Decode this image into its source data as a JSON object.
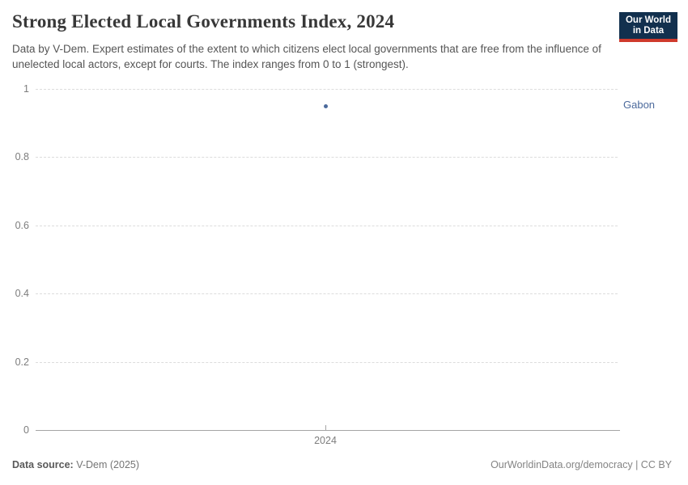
{
  "header": {
    "title": "Strong Elected Local Governments Index, 2024",
    "subtitle": "Data by V-Dem. Expert estimates of the extent to which citizens elect local governments that are free from the influence of unelected local actors, except for courts. The index ranges from 0 to 1 (strongest).",
    "logo": {
      "line1": "Our World",
      "line2": "in Data"
    }
  },
  "chart_data": {
    "type": "scatter",
    "title": "Strong Elected Local Governments Index, 2024",
    "series": [
      {
        "name": "Gabon",
        "x": [
          2024
        ],
        "y": [
          0.95
        ]
      }
    ],
    "xlabel": "",
    "ylabel": "",
    "xticks": [
      "2024"
    ],
    "yticks": [
      0,
      0.2,
      0.4,
      0.6,
      0.8,
      1
    ],
    "ylim": [
      0,
      1
    ],
    "grid": "horizontal dashed, solid baseline at 0",
    "legend_position": "entity label right of point",
    "point_color": "#4C6A9C",
    "entity_label_color": "#4C6A9C"
  },
  "footer": {
    "source_label": "Data source:",
    "source_value": "V-Dem (2025)",
    "rights": "OurWorldinData.org/democracy | CC BY"
  },
  "colors": {
    "logo_background": "#12304e",
    "logo_accent": "#cf3a2c",
    "gridline": "#dcdcdc",
    "axis": "#a5a5a5",
    "tick_text": "#7d7d7d"
  }
}
